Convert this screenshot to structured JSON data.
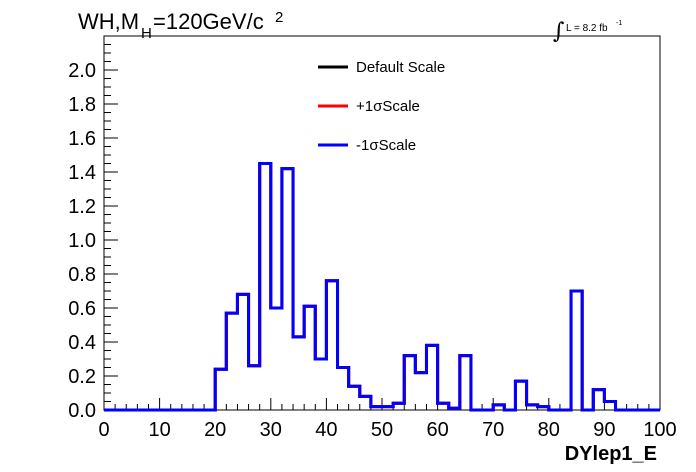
{
  "chart_data": {
    "type": "line",
    "title": "WH,M",
    "title_sub": "H",
    "title_rest": "=120GeV/c",
    "title_sup": "2",
    "lumi_label": "L = 8.2 fb",
    "lumi_sup": "-1",
    "xlabel": "DYlep1_E",
    "ylabel": "",
    "xlim": [
      0,
      100
    ],
    "ylim": [
      0,
      2.2
    ],
    "x_ticks": [
      "0",
      "10",
      "20",
      "30",
      "40",
      "50",
      "60",
      "70",
      "80",
      "90",
      "100"
    ],
    "y_ticks": [
      "0.0",
      "0.2",
      "0.4",
      "0.6",
      "0.8",
      "1.0",
      "1.2",
      "1.4",
      "1.6",
      "1.8",
      "2.0"
    ],
    "bin_width": 2,
    "legend_position": "top-center",
    "series": [
      {
        "name": "Default Scale",
        "color": "#000000",
        "values": [
          0,
          0,
          0,
          0,
          0,
          0,
          0,
          0,
          0,
          0,
          0.24,
          0.57,
          0.68,
          0.26,
          1.45,
          0.6,
          1.42,
          0.43,
          0.61,
          0.3,
          0.76,
          0.25,
          0.14,
          0.08,
          0.02,
          0.02,
          0.04,
          0.32,
          0.22,
          0.38,
          0.04,
          0.01,
          0.32,
          0,
          0,
          0.03,
          0,
          0.17,
          0.03,
          0.02,
          0,
          0,
          0.7,
          0,
          0.12,
          0.05,
          0,
          0,
          0,
          0
        ]
      },
      {
        "name": "+1σScale",
        "color": "#ff0000",
        "values": [
          0,
          0,
          0,
          0,
          0,
          0,
          0,
          0,
          0,
          0,
          0.24,
          0.57,
          0.68,
          0.26,
          1.45,
          0.6,
          1.42,
          0.43,
          0.61,
          0.3,
          0.76,
          0.25,
          0.14,
          0.08,
          0.02,
          0.02,
          0.04,
          0.32,
          0.22,
          0.38,
          0.04,
          0.01,
          0.32,
          0,
          0,
          0.03,
          0,
          0.17,
          0.03,
          0.02,
          0,
          0,
          0.7,
          0,
          0.12,
          0.05,
          0,
          0,
          0,
          0
        ]
      },
      {
        "name": "-1σScale",
        "color": "#0000ff",
        "values": [
          0,
          0,
          0,
          0,
          0,
          0,
          0,
          0,
          0,
          0,
          0.24,
          0.57,
          0.68,
          0.26,
          1.45,
          0.6,
          1.42,
          0.43,
          0.61,
          0.3,
          0.76,
          0.25,
          0.14,
          0.08,
          0.02,
          0.02,
          0.04,
          0.32,
          0.22,
          0.38,
          0.04,
          0.01,
          0.32,
          0,
          0,
          0.03,
          0,
          0.17,
          0.03,
          0.02,
          0,
          0,
          0.7,
          0,
          0.12,
          0.05,
          0,
          0,
          0,
          0
        ]
      }
    ]
  }
}
